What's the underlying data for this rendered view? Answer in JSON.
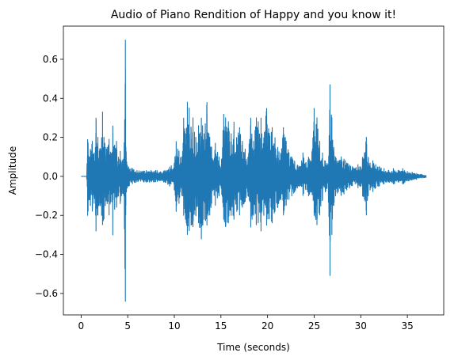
{
  "chart_data": {
    "type": "line",
    "title": "Audio of Piano Rendition of Happy and you know it!",
    "xlabel": "Time (seconds)",
    "ylabel": "Amplitude",
    "xlim": [
      -1.9,
      38.9
    ],
    "ylim": [
      -0.71,
      0.77
    ],
    "xticks": [
      0,
      5,
      10,
      15,
      20,
      25,
      30,
      35
    ],
    "xtick_labels": [
      "0",
      "5",
      "10",
      "15",
      "20",
      "25",
      "30",
      "35"
    ],
    "yticks": [
      -0.6,
      -0.4,
      -0.2,
      0.0,
      0.2,
      0.4,
      0.6
    ],
    "ytick_labels": [
      "−0.6",
      "−0.4",
      "−0.2",
      "0.0",
      "0.2",
      "0.4",
      "0.6"
    ],
    "grid": false,
    "legend": "none",
    "color": "#1f77b4",
    "series": [
      {
        "envelope": {
          "time": [
            0.0,
            0.6,
            0.7,
            0.75,
            0.9,
            1.0,
            1.2,
            1.4,
            1.6,
            1.8,
            2.0,
            2.2,
            2.3,
            2.45,
            2.6,
            2.8,
            3.0,
            3.2,
            3.4,
            3.6,
            3.8,
            4.0,
            4.2,
            4.4,
            4.6,
            4.75,
            4.8,
            4.95,
            5.1,
            5.5,
            6.0,
            7.0,
            7.5,
            8.0,
            9.0,
            9.5,
            10.0,
            10.2,
            10.5,
            10.8,
            11.0,
            11.2,
            11.4,
            11.6,
            11.8,
            12.0,
            12.3,
            12.6,
            12.9,
            13.2,
            13.5,
            13.8,
            14.0,
            14.4,
            14.8,
            15.0,
            15.3,
            15.5,
            15.8,
            16.1,
            16.4,
            16.7,
            17.0,
            17.3,
            17.6,
            17.9,
            18.2,
            18.5,
            18.8,
            19.0,
            19.3,
            19.6,
            19.9,
            20.2,
            20.5,
            20.8,
            21.1,
            21.4,
            21.7,
            22.0,
            22.3,
            22.6,
            22.9,
            23.2,
            23.5,
            23.8,
            24.1,
            24.4,
            24.7,
            25.0,
            25.3,
            25.6,
            25.9,
            26.2,
            26.5,
            26.7,
            26.9,
            27.1,
            27.3,
            27.6,
            27.9,
            28.2,
            28.5,
            28.8,
            29.1,
            29.4,
            29.7,
            30.0,
            30.2,
            30.4,
            30.6,
            30.8,
            31.0,
            31.3,
            31.6,
            32.0,
            32.5,
            33.0,
            33.5,
            34.0,
            34.5,
            35.0,
            35.5,
            36.0,
            36.5,
            37.0
          ],
          "upper": [
            0.0,
            0.0,
            0.19,
            0.17,
            0.1,
            0.14,
            0.18,
            0.12,
            0.3,
            0.2,
            0.14,
            0.2,
            0.33,
            0.2,
            0.15,
            0.15,
            0.19,
            0.12,
            0.26,
            0.16,
            0.18,
            0.1,
            0.13,
            0.08,
            0.1,
            0.7,
            0.15,
            0.06,
            0.05,
            0.04,
            0.03,
            0.03,
            0.03,
            0.03,
            0.03,
            0.05,
            0.07,
            0.18,
            0.13,
            0.1,
            0.3,
            0.22,
            0.38,
            0.35,
            0.25,
            0.3,
            0.2,
            0.26,
            0.3,
            0.22,
            0.38,
            0.2,
            0.15,
            0.17,
            0.1,
            0.05,
            0.32,
            0.3,
            0.28,
            0.22,
            0.28,
            0.2,
            0.25,
            0.18,
            0.14,
            0.1,
            0.3,
            0.18,
            0.3,
            0.28,
            0.3,
            0.2,
            0.35,
            0.22,
            0.25,
            0.2,
            0.15,
            0.12,
            0.25,
            0.18,
            0.12,
            0.1,
            0.08,
            0.06,
            0.05,
            0.12,
            0.07,
            0.1,
            0.08,
            0.35,
            0.3,
            0.18,
            0.12,
            0.08,
            0.06,
            0.47,
            0.3,
            0.15,
            0.1,
            0.08,
            0.1,
            0.09,
            0.07,
            0.06,
            0.05,
            0.04,
            0.06,
            0.05,
            0.1,
            0.12,
            0.2,
            0.1,
            0.07,
            0.08,
            0.06,
            0.05,
            0.04,
            0.03,
            0.04,
            0.03,
            0.04,
            0.025,
            0.02,
            0.015,
            0.01,
            0.005
          ],
          "lower": [
            0.0,
            0.0,
            -0.2,
            -0.18,
            -0.12,
            -0.15,
            -0.18,
            -0.14,
            -0.28,
            -0.2,
            -0.15,
            -0.2,
            -0.25,
            -0.22,
            -0.15,
            -0.14,
            -0.2,
            -0.13,
            -0.3,
            -0.17,
            -0.16,
            -0.1,
            -0.14,
            -0.09,
            -0.1,
            -0.64,
            -0.15,
            -0.06,
            -0.05,
            -0.04,
            -0.03,
            -0.03,
            -0.03,
            -0.03,
            -0.03,
            -0.05,
            -0.07,
            -0.18,
            -0.14,
            -0.1,
            -0.2,
            -0.22,
            -0.3,
            -0.28,
            -0.25,
            -0.26,
            -0.2,
            -0.24,
            -0.32,
            -0.22,
            -0.25,
            -0.2,
            -0.14,
            -0.15,
            -0.1,
            -0.05,
            -0.22,
            -0.26,
            -0.24,
            -0.2,
            -0.22,
            -0.18,
            -0.2,
            -0.16,
            -0.13,
            -0.1,
            -0.26,
            -0.2,
            -0.25,
            -0.24,
            -0.28,
            -0.2,
            -0.25,
            -0.22,
            -0.24,
            -0.18,
            -0.16,
            -0.12,
            -0.2,
            -0.15,
            -0.12,
            -0.1,
            -0.08,
            -0.06,
            -0.05,
            -0.1,
            -0.07,
            -0.1,
            -0.08,
            -0.2,
            -0.25,
            -0.2,
            -0.12,
            -0.08,
            -0.06,
            -0.51,
            -0.3,
            -0.15,
            -0.1,
            -0.08,
            -0.1,
            -0.09,
            -0.07,
            -0.06,
            -0.05,
            -0.04,
            -0.06,
            -0.05,
            -0.1,
            -0.12,
            -0.2,
            -0.1,
            -0.07,
            -0.08,
            -0.06,
            -0.05,
            -0.04,
            -0.03,
            -0.04,
            -0.03,
            -0.04,
            -0.025,
            -0.02,
            -0.015,
            -0.01,
            -0.005
          ]
        }
      }
    ]
  }
}
